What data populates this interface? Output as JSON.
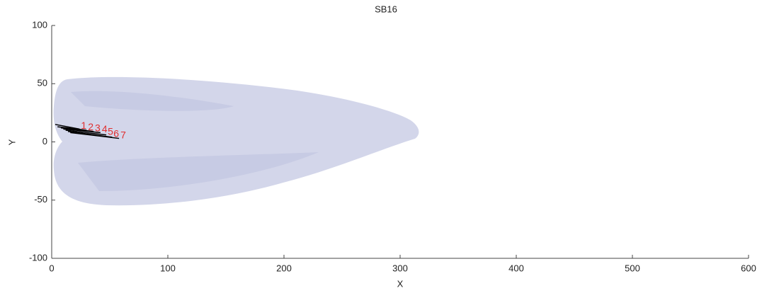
{
  "chart_data": {
    "type": "line",
    "title": "SB16",
    "xlabel": "X",
    "ylabel": "Y",
    "xlim": [
      0,
      600
    ],
    "ylim": [
      -100,
      100
    ],
    "xticks": [
      0,
      100,
      200,
      300,
      400,
      500,
      600
    ],
    "yticks": [
      -100,
      -50,
      0,
      50,
      100
    ],
    "end_label_color": "#e03030",
    "series": [
      {
        "name": "1",
        "color": "#000000",
        "x": [
          3,
          24
        ],
        "values": [
          15,
          11
        ]
      },
      {
        "name": "2",
        "color": "#000000",
        "x": [
          5,
          30
        ],
        "values": [
          13,
          10
        ]
      },
      {
        "name": "3",
        "color": "#000000",
        "x": [
          8,
          36
        ],
        "values": [
          12,
          9
        ]
      },
      {
        "name": "4",
        "color": "#000000",
        "x": [
          10,
          42
        ],
        "values": [
          11,
          8
        ]
      },
      {
        "name": "5",
        "color": "#000000",
        "x": [
          12,
          47
        ],
        "values": [
          10,
          6
        ]
      },
      {
        "name": "6",
        "color": "#000000",
        "x": [
          14,
          52
        ],
        "values": [
          9,
          4
        ]
      },
      {
        "name": "7",
        "color": "#000000",
        "x": [
          16,
          58
        ],
        "values": [
          8,
          3
        ]
      }
    ]
  }
}
